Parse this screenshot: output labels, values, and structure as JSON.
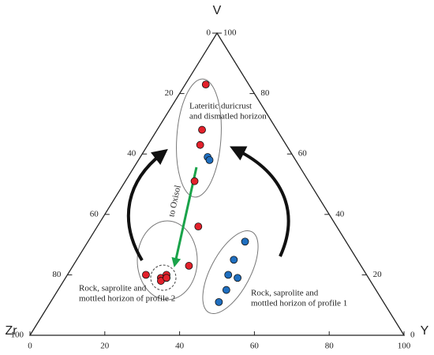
{
  "chart_data": {
    "type": "ternary",
    "vertex_labels": {
      "top": "V",
      "left": "Zr",
      "right": "Y"
    },
    "ticks": [
      0,
      20,
      40,
      60,
      80,
      100
    ],
    "series": [
      {
        "color": "#e3212b",
        "V": [
          83,
          68,
          63,
          51,
          36,
          20,
          23,
          19,
          20,
          19,
          18,
          19
        ],
        "Y": [
          5.5,
          12,
          14,
          18.5,
          27,
          21,
          31,
          25.5,
          26.5,
          27,
          26,
          27
        ]
      },
      {
        "color": "#1f6fc0",
        "V": [
          59,
          58,
          31,
          25,
          20,
          19,
          15,
          11
        ],
        "Y": [
          18,
          19,
          42,
          42,
          43,
          46,
          45,
          45
        ]
      }
    ],
    "annotations": {
      "upper": [
        "Lateritic duricrust",
        "and dismatled horizon"
      ],
      "profile2": [
        "Rock, saprolite and",
        "mottled horizon of profile 2"
      ],
      "profile1": [
        "Rock, saprolite and",
        "mottled horizon of profile 1"
      ],
      "arrow": "to Oxisol"
    }
  }
}
